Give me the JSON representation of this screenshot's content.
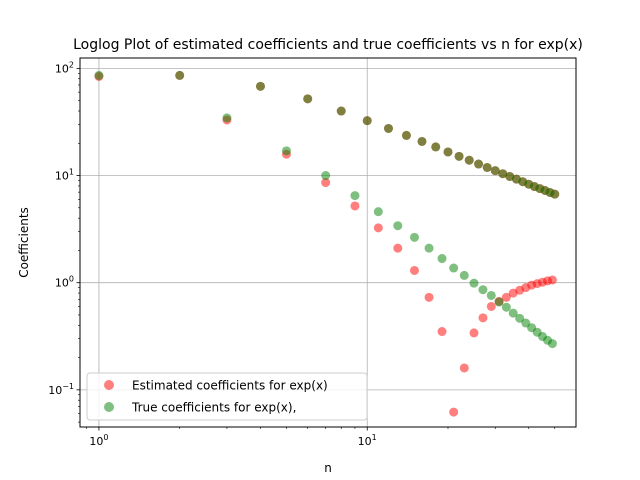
{
  "chart_data": {
    "type": "scatter",
    "title": "Loglog Plot of estimated coefficients and true coefficients vs n for exp(x)",
    "xlabel": "n",
    "ylabel": "Coefficients",
    "xscale": "log",
    "yscale": "log",
    "xlim": [
      0.85,
      60
    ],
    "ylim": [
      0.045,
      125
    ],
    "grid": true,
    "legend_position": "lower-left",
    "x_ticks": [
      {
        "value": 1,
        "base": "10",
        "exp": "0"
      },
      {
        "value": 10,
        "base": "10",
        "exp": "1"
      }
    ],
    "y_ticks": [
      {
        "value": 0.1,
        "base": "10",
        "exp": "−1"
      },
      {
        "value": 1,
        "base": "10",
        "exp": "0"
      },
      {
        "value": 10,
        "base": "10",
        "exp": "1"
      },
      {
        "value": 100,
        "base": "10",
        "exp": "2"
      }
    ],
    "series": [
      {
        "name": "Estimated coefficients for exp(x)",
        "color": "#ff0000",
        "points": [
          [
            1,
            84
          ],
          [
            3,
            33
          ],
          [
            5,
            15.8
          ],
          [
            7,
            8.6
          ],
          [
            9,
            5.2
          ],
          [
            11,
            3.25
          ],
          [
            13,
            2.1
          ],
          [
            15,
            1.3
          ],
          [
            17,
            0.73
          ],
          [
            19,
            0.35
          ],
          [
            21,
            0.062
          ],
          [
            23,
            0.16
          ],
          [
            25,
            0.34
          ],
          [
            27,
            0.47
          ],
          [
            29,
            0.6
          ],
          [
            31,
            0.67
          ],
          [
            33,
            0.73
          ],
          [
            35,
            0.8
          ],
          [
            37,
            0.85
          ],
          [
            39,
            0.9
          ],
          [
            41,
            0.95
          ],
          [
            43,
            0.98
          ],
          [
            45,
            1.01
          ],
          [
            47,
            1.04
          ],
          [
            49,
            1.06
          ],
          [
            2,
            86
          ],
          [
            4,
            68
          ],
          [
            6,
            52
          ],
          [
            8,
            40
          ],
          [
            10,
            32.5
          ],
          [
            12,
            27.5
          ],
          [
            14,
            23.7
          ],
          [
            16,
            20.8
          ],
          [
            18,
            18.5
          ],
          [
            20,
            16.6
          ],
          [
            22,
            15.1
          ],
          [
            24,
            13.9
          ],
          [
            26,
            12.8
          ],
          [
            28,
            11.9
          ],
          [
            30,
            11.1
          ],
          [
            32,
            10.4
          ],
          [
            34,
            9.8
          ],
          [
            36,
            9.25
          ],
          [
            38,
            8.75
          ],
          [
            40,
            8.3
          ],
          [
            42,
            7.9
          ],
          [
            44,
            7.55
          ],
          [
            46,
            7.25
          ],
          [
            48,
            6.95
          ],
          [
            50,
            6.7
          ]
        ]
      },
      {
        "name": "True coefficients for exp(x),",
        "color": "#008000",
        "points": [
          [
            1,
            86
          ],
          [
            3,
            34.5
          ],
          [
            5,
            17
          ],
          [
            7,
            10
          ],
          [
            9,
            6.5
          ],
          [
            11,
            4.6
          ],
          [
            13,
            3.4
          ],
          [
            15,
            2.65
          ],
          [
            17,
            2.1
          ],
          [
            19,
            1.68
          ],
          [
            21,
            1.37
          ],
          [
            23,
            1.17
          ],
          [
            25,
            0.99
          ],
          [
            27,
            0.86
          ],
          [
            29,
            0.76
          ],
          [
            31,
            0.66
          ],
          [
            33,
            0.59
          ],
          [
            35,
            0.52
          ],
          [
            37,
            0.465
          ],
          [
            39,
            0.42
          ],
          [
            41,
            0.38
          ],
          [
            43,
            0.345
          ],
          [
            45,
            0.315
          ],
          [
            47,
            0.29
          ],
          [
            49,
            0.27
          ],
          [
            2,
            86
          ],
          [
            4,
            68
          ],
          [
            6,
            52
          ],
          [
            8,
            40
          ],
          [
            10,
            32.5
          ],
          [
            12,
            27.5
          ],
          [
            14,
            23.7
          ],
          [
            16,
            20.8
          ],
          [
            18,
            18.5
          ],
          [
            20,
            16.6
          ],
          [
            22,
            15.1
          ],
          [
            24,
            13.9
          ],
          [
            26,
            12.8
          ],
          [
            28,
            11.9
          ],
          [
            30,
            11.1
          ],
          [
            32,
            10.4
          ],
          [
            34,
            9.8
          ],
          [
            36,
            9.25
          ],
          [
            38,
            8.75
          ],
          [
            40,
            8.3
          ],
          [
            42,
            7.9
          ],
          [
            44,
            7.55
          ],
          [
            46,
            7.25
          ],
          [
            48,
            6.95
          ],
          [
            50,
            6.7
          ]
        ]
      }
    ]
  }
}
